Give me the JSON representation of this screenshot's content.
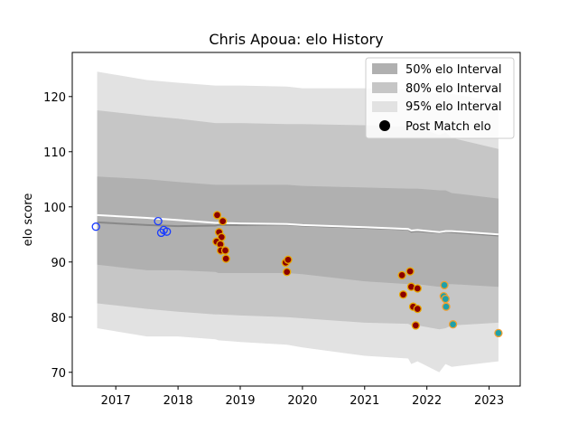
{
  "chart_data": {
    "type": "scatter",
    "title": "Chris Apoua: elo History",
    "xlabel": "",
    "ylabel": "elo score",
    "xlim": [
      2016.3,
      2023.5
    ],
    "ylim": [
      67.5,
      128
    ],
    "x_ticks": [
      2017,
      2018,
      2019,
      2020,
      2021,
      2022,
      2023
    ],
    "x_tick_labels": [
      "2017",
      "2018",
      "2019",
      "2020",
      "2021",
      "2022",
      "2023"
    ],
    "y_ticks": [
      70,
      80,
      90,
      100,
      110,
      120
    ],
    "y_tick_labels": [
      "70",
      "80",
      "90",
      "100",
      "110",
      "120"
    ],
    "legend_position": "top-right",
    "legend": {
      "interval_50": "50% elo Interval",
      "interval_80": "80% elo Interval",
      "interval_95": "95% elo Interval",
      "post_match": "Post Match elo"
    },
    "colors": {
      "band_50": "#b0b0b0",
      "band_80": "#c6c6c6",
      "band_95": "#e2e2e2",
      "median_line": "#888888",
      "mean_line": "#ffffff",
      "dot_edge_blue": "#1a3cff",
      "dot_fill_dark": "#8b0000",
      "dot_edge_gold": "#e8a800",
      "dot_fill_teal": "#20a0a8",
      "dot_edge_amber": "#f0a030"
    },
    "bands": {
      "x": [
        2016.7,
        2017.5,
        2018.0,
        2018.6,
        2018.65,
        2019.0,
        2019.75,
        2020.0,
        2021.0,
        2021.7,
        2021.75,
        2021.85,
        2022.2,
        2022.3,
        2022.4,
        2023.15
      ],
      "p95_upper": [
        124.5,
        123.0,
        122.5,
        122.0,
        122.0,
        122.0,
        121.8,
        121.5,
        121.5,
        121.3,
        121.0,
        121.0,
        120.5,
        120.8,
        120.5,
        119.0
      ],
      "p80_upper": [
        117.5,
        116.5,
        116.0,
        115.2,
        115.2,
        115.2,
        115.0,
        115.0,
        114.8,
        114.5,
        114.5,
        114.5,
        113.0,
        113.5,
        112.5,
        110.5
      ],
      "p50_upper": [
        105.5,
        105.0,
        104.5,
        104.0,
        104.0,
        104.0,
        104.0,
        103.8,
        103.5,
        103.3,
        103.3,
        103.3,
        103.0,
        103.0,
        102.5,
        101.5
      ],
      "median": [
        97.2,
        96.7,
        96.5,
        96.6,
        96.7,
        96.7,
        96.8,
        96.6,
        96.2,
        95.9,
        95.5,
        95.6,
        95.3,
        95.5,
        95.4,
        94.8
      ],
      "mean": [
        98.5,
        98.0,
        97.6,
        97.1,
        97.1,
        97.0,
        96.9,
        96.7,
        96.3,
        96.0,
        95.7,
        95.8,
        95.4,
        95.6,
        95.6,
        95.0
      ],
      "p50_lower": [
        89.5,
        88.5,
        88.5,
        88.2,
        88.0,
        88.0,
        88.0,
        87.8,
        86.5,
        86.0,
        86.0,
        86.0,
        85.5,
        86.0,
        86.0,
        85.5
      ],
      "p80_lower": [
        82.5,
        81.5,
        81.0,
        80.5,
        80.5,
        80.3,
        80.0,
        79.8,
        79.0,
        78.8,
        78.5,
        78.5,
        77.8,
        78.0,
        78.5,
        79.0
      ],
      "p95_lower": [
        78.0,
        76.5,
        76.5,
        76.0,
        75.8,
        75.5,
        75.0,
        74.5,
        73.0,
        72.5,
        71.5,
        72.0,
        70.0,
        71.5,
        71.0,
        72.0
      ]
    },
    "series": [
      {
        "name": "Post Match elo",
        "style": "blue-outline",
        "points": [
          {
            "x": 2016.68,
            "y": 96.4
          },
          {
            "x": 2017.68,
            "y": 97.4
          },
          {
            "x": 2017.73,
            "y": 95.3
          },
          {
            "x": 2017.77,
            "y": 95.8
          },
          {
            "x": 2017.82,
            "y": 95.5
          }
        ]
      },
      {
        "name": "Post Match elo",
        "style": "dark-gold",
        "points": [
          {
            "x": 2018.63,
            "y": 98.5
          },
          {
            "x": 2018.72,
            "y": 97.4
          },
          {
            "x": 2018.66,
            "y": 95.4
          },
          {
            "x": 2018.7,
            "y": 94.5
          },
          {
            "x": 2018.62,
            "y": 93.7
          },
          {
            "x": 2018.68,
            "y": 93.2
          },
          {
            "x": 2018.69,
            "y": 92.1
          },
          {
            "x": 2018.76,
            "y": 92.1
          },
          {
            "x": 2018.77,
            "y": 90.6
          },
          {
            "x": 2019.73,
            "y": 89.9
          },
          {
            "x": 2019.77,
            "y": 90.4
          },
          {
            "x": 2019.75,
            "y": 88.2
          },
          {
            "x": 2021.6,
            "y": 87.6
          },
          {
            "x": 2021.73,
            "y": 88.3
          },
          {
            "x": 2021.75,
            "y": 85.5
          },
          {
            "x": 2021.85,
            "y": 85.2
          },
          {
            "x": 2021.62,
            "y": 84.1
          },
          {
            "x": 2021.78,
            "y": 81.9
          },
          {
            "x": 2021.85,
            "y": 81.5
          },
          {
            "x": 2021.82,
            "y": 78.5
          }
        ]
      },
      {
        "name": "Post Match elo",
        "style": "teal-amber",
        "points": [
          {
            "x": 2022.28,
            "y": 85.8
          },
          {
            "x": 2022.27,
            "y": 83.8
          },
          {
            "x": 2022.3,
            "y": 83.3
          },
          {
            "x": 2022.31,
            "y": 81.9
          },
          {
            "x": 2022.42,
            "y": 78.7
          },
          {
            "x": 2023.15,
            "y": 77.1
          }
        ]
      }
    ]
  }
}
